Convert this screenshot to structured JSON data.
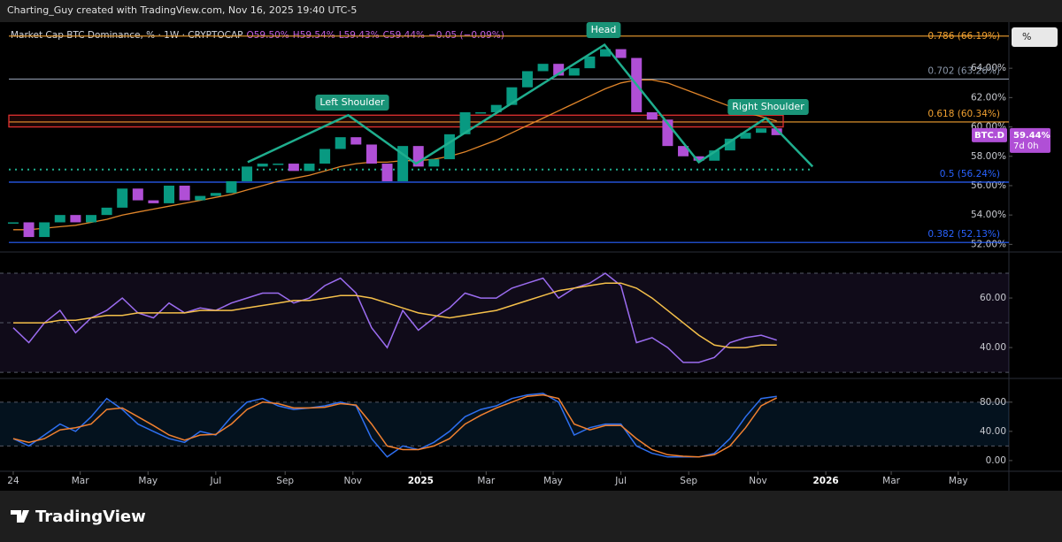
{
  "header": {
    "credit": "Charting_Guy created with TradingView.com, Nov 16, 2025 19:40 UTC-5",
    "symbol": "Market Cap BTC Dominance, % · 1W · CRYPTOCAP",
    "ohlc": [
      "O59.50%",
      "H59.54%",
      "L59.43%",
      "C59.44%"
    ],
    "change": "−0.05 (−0.09%)"
  },
  "pattern_labels": {
    "left": "Left Shoulder",
    "head": "Head",
    "right": "Right Shoulder"
  },
  "price_tag": {
    "symbol": "BTC.D",
    "price": "59.44%",
    "countdown": "7d 0h"
  },
  "scale_button": "%",
  "footer": {
    "brand": "TradingView"
  },
  "chart_data": [
    {
      "type": "candlestick",
      "xlim": [
        -1.7,
        127.8
      ],
      "ylim": [
        51.6,
        66.6
      ],
      "x": [
        0,
        2,
        4,
        6,
        8,
        10,
        12,
        14,
        16,
        18,
        20,
        22,
        24,
        26,
        28,
        30,
        32,
        34,
        36,
        38,
        40,
        42,
        44,
        46,
        48,
        50,
        52,
        54,
        56,
        58,
        60,
        62,
        64,
        66,
        68,
        70,
        72,
        74,
        76,
        78,
        80,
        82,
        84,
        86,
        88,
        90,
        92,
        94,
        96,
        98
      ],
      "series": [
        {
          "name": "BTC.D",
          "color": "#089981",
          "down_color": "#b04fd6",
          "values": [
            53.5,
            52.5,
            53.5,
            54.0,
            53.5,
            54.0,
            54.5,
            55.8,
            55.0,
            54.8,
            56.0,
            55.0,
            55.3,
            55.5,
            56.3,
            57.3,
            57.5,
            57.5,
            57.0,
            57.5,
            58.5,
            59.3,
            58.8,
            57.5,
            56.3,
            58.7,
            57.3,
            57.8,
            59.5,
            61.0,
            61.0,
            61.5,
            62.7,
            63.8,
            64.3,
            63.5,
            64.0,
            64.8,
            65.3,
            64.7,
            61.0,
            60.5,
            58.7,
            58.0,
            57.7,
            58.4,
            59.2,
            59.6,
            59.9,
            59.44
          ]
        },
        {
          "color": "#e0852a",
          "values": [
            53.0,
            53.0,
            53.1,
            53.2,
            53.3,
            53.5,
            53.7,
            54.0,
            54.2,
            54.4,
            54.6,
            54.8,
            55.0,
            55.2,
            55.4,
            55.7,
            56.0,
            56.3,
            56.5,
            56.7,
            57.0,
            57.3,
            57.5,
            57.6,
            57.6,
            57.7,
            57.7,
            57.8,
            58.0,
            58.3,
            58.7,
            59.1,
            59.6,
            60.1,
            60.6,
            61.1,
            61.6,
            62.1,
            62.6,
            63.0,
            63.2,
            63.2,
            63.0,
            62.6,
            62.2,
            61.8,
            61.4,
            61.0,
            60.7,
            60.4
          ]
        }
      ],
      "yticks": [
        {
          "value": 52,
          "label": "52.00%"
        },
        {
          "value": 54,
          "label": "54.00%"
        },
        {
          "value": 56,
          "label": "56.00%"
        },
        {
          "value": 58,
          "label": "58.00%"
        },
        {
          "value": 60,
          "label": "60.00%"
        },
        {
          "value": 62,
          "label": "62.00%"
        },
        {
          "value": 64,
          "label": "64.00%"
        }
      ],
      "levels": [
        {
          "label": "0.786 (66.19%)",
          "value": 66.19,
          "color": "#f0a030"
        },
        {
          "label": "0.702 (63.26%)",
          "value": 63.26,
          "color": "#8a96a8"
        },
        {
          "label": "0.618 (60.34%)",
          "value": 60.34,
          "color": "#f0a030"
        },
        {
          "label": "0.5 (56.24%)",
          "value": 56.24,
          "color": "#2962ff"
        },
        {
          "label": "0.382 (52.13%)",
          "value": 52.13,
          "color": "#2962ff"
        }
      ],
      "zone": [
        60.0,
        60.8
      ],
      "zone_color": "#e03030",
      "pattern": {
        "color": "#1fae8e",
        "x": [
          30.1,
          43,
          51.7,
          75.9,
          88,
          96.6,
          102.6
        ],
        "values": [
          57.6,
          60.8,
          57.5,
          65.6,
          57.6,
          60.6,
          57.3
        ]
      },
      "neckline": 57.1
    },
    {
      "type": "line",
      "xlim": [
        -1.7,
        127.8
      ],
      "ylim": [
        28.6,
        76.8
      ],
      "x": [
        0,
        2,
        4,
        6,
        8,
        10,
        12,
        14,
        16,
        18,
        20,
        22,
        24,
        26,
        28,
        30,
        32,
        34,
        36,
        38,
        40,
        42,
        44,
        46,
        48,
        50,
        52,
        54,
        56,
        58,
        60,
        62,
        64,
        66,
        68,
        70,
        72,
        74,
        76,
        78,
        80,
        82,
        84,
        86,
        88,
        90,
        92,
        94,
        96,
        98
      ],
      "series": [
        {
          "color": "#9b6cf0",
          "values": [
            48,
            42,
            50,
            55,
            46,
            52,
            55,
            60,
            54,
            52,
            58,
            54,
            56,
            55,
            58,
            60,
            62,
            62,
            58,
            60,
            65,
            68,
            62,
            48,
            40,
            55,
            47,
            52,
            56,
            62,
            60,
            60,
            64,
            66,
            68,
            60,
            64,
            66,
            70,
            65,
            42,
            44,
            40,
            34,
            34,
            36,
            42,
            44,
            45,
            43
          ]
        },
        {
          "color": "#f5c04a",
          "values": [
            50,
            50,
            50,
            51,
            51,
            52,
            53,
            53,
            54,
            54,
            54,
            54,
            55,
            55,
            55,
            56,
            57,
            58,
            59,
            59,
            60,
            61,
            61,
            60,
            58,
            56,
            54,
            53,
            52,
            53,
            54,
            55,
            57,
            59,
            61,
            63,
            64,
            65,
            66,
            66,
            64,
            60,
            55,
            50,
            45,
            41,
            40,
            40,
            41,
            41
          ]
        }
      ],
      "yticks": [
        {
          "value": 40,
          "label": "40.00"
        },
        {
          "value": 60,
          "label": "60.00"
        }
      ],
      "bands": [
        70,
        50,
        30
      ],
      "band_color": "rgba(126,87,194,0.13)"
    },
    {
      "type": "line",
      "xlim": [
        -1.7,
        127.8
      ],
      "ylim": [
        -11,
        104
      ],
      "x": [
        0,
        2,
        4,
        6,
        8,
        10,
        12,
        14,
        16,
        18,
        20,
        22,
        24,
        26,
        28,
        30,
        32,
        34,
        36,
        38,
        40,
        42,
        44,
        46,
        48,
        50,
        52,
        54,
        56,
        58,
        60,
        62,
        64,
        66,
        68,
        70,
        72,
        74,
        76,
        78,
        80,
        82,
        84,
        86,
        88,
        90,
        92,
        94,
        96,
        98
      ],
      "series": [
        {
          "color": "#2e6ff0",
          "values": [
            30,
            20,
            35,
            50,
            40,
            60,
            85,
            70,
            50,
            40,
            30,
            25,
            40,
            35,
            60,
            80,
            85,
            75,
            70,
            72,
            75,
            80,
            75,
            30,
            5,
            20,
            15,
            25,
            40,
            60,
            70,
            75,
            85,
            90,
            92,
            80,
            35,
            45,
            50,
            50,
            20,
            10,
            5,
            5,
            5,
            10,
            30,
            60,
            85,
            88
          ]
        },
        {
          "color": "#f08030",
          "values": [
            30,
            25,
            30,
            42,
            45,
            50,
            70,
            72,
            60,
            48,
            35,
            28,
            35,
            36,
            50,
            70,
            80,
            78,
            72,
            72,
            73,
            78,
            76,
            50,
            20,
            15,
            15,
            20,
            30,
            50,
            62,
            72,
            80,
            88,
            90,
            85,
            50,
            42,
            48,
            48,
            30,
            15,
            8,
            6,
            5,
            8,
            20,
            45,
            75,
            86
          ]
        }
      ],
      "yticks": [
        {
          "value": 0,
          "label": "0.00"
        },
        {
          "value": 40,
          "label": "40.00"
        },
        {
          "value": 80,
          "label": "80.00"
        }
      ],
      "bands": [
        80,
        20
      ],
      "band_color": "rgba(33,150,243,0.12)",
      "xticks": [
        {
          "value": 0,
          "label": "24"
        },
        {
          "value": 8.6,
          "label": "Mar"
        },
        {
          "value": 17.3,
          "label": "May"
        },
        {
          "value": 26,
          "label": "Jul"
        },
        {
          "value": 34.9,
          "label": "Sep"
        },
        {
          "value": 43.6,
          "label": "Nov"
        },
        {
          "value": 52.3,
          "label": "2025"
        },
        {
          "value": 60.7,
          "label": "Mar"
        },
        {
          "value": 69.3,
          "label": "May"
        },
        {
          "value": 78,
          "label": "Jul"
        },
        {
          "value": 86.7,
          "label": "Sep"
        },
        {
          "value": 95.6,
          "label": "Nov"
        },
        {
          "value": 104.3,
          "label": "2026"
        },
        {
          "value": 112.7,
          "label": "Mar"
        },
        {
          "value": 121.3,
          "label": "May"
        }
      ]
    }
  ]
}
